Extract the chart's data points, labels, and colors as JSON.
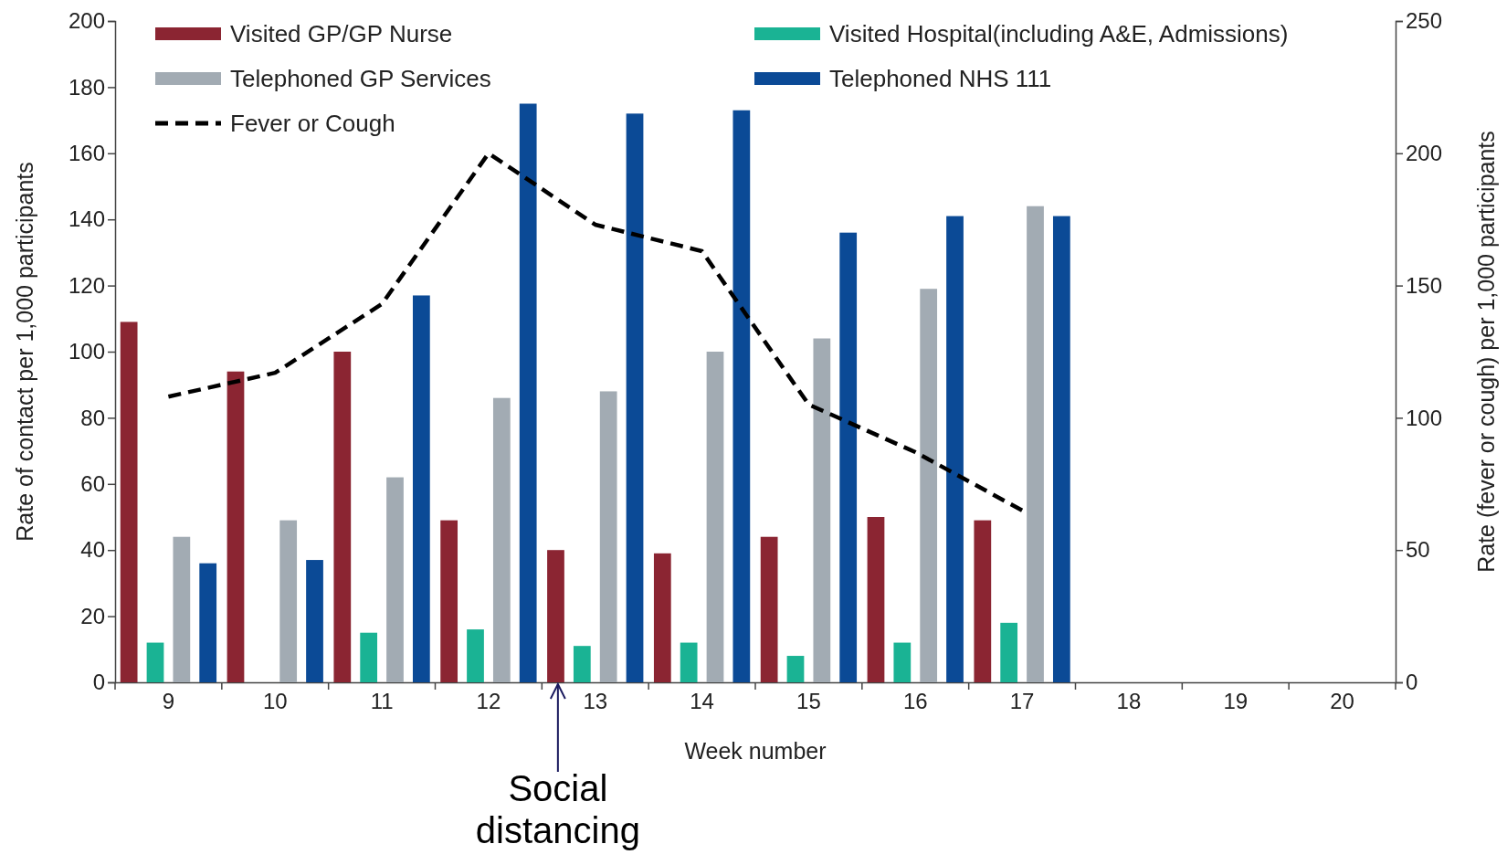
{
  "chart_data": {
    "type": "bar",
    "xlabel": "Week number",
    "ylabel": "Rate of contact per 1,000 participants",
    "y2label": "Rate (fever or cough) per 1,000 participants",
    "categories": [
      "9",
      "10",
      "11",
      "12",
      "13",
      "14",
      "15",
      "16",
      "17",
      "18",
      "19",
      "20"
    ],
    "series": [
      {
        "name": "Visited GP/GP Nurse",
        "color": "#8b2532",
        "values": [
          109,
          94,
          100,
          49,
          40,
          39,
          44,
          50,
          49,
          null,
          null,
          null
        ]
      },
      {
        "name": "Visited Hospital(including A&E, Admissions)",
        "color": "#1ab394",
        "values": [
          12,
          null,
          15,
          16,
          11,
          12,
          8,
          12,
          18,
          null,
          null,
          null
        ]
      },
      {
        "name": "Telephoned GP Services",
        "color": "#a2abb3",
        "values": [
          44,
          49,
          62,
          86,
          88,
          100,
          104,
          119,
          144,
          null,
          null,
          null
        ]
      },
      {
        "name": "Telephoned NHS 111",
        "color": "#0b4a96",
        "values": [
          36,
          37,
          117,
          175,
          172,
          173,
          136,
          141,
          141,
          null,
          null,
          null
        ]
      },
      {
        "name": "Fever or Cough",
        "type": "line",
        "axis": "y2",
        "color": "#000000",
        "line_style": "dashed",
        "marker": "none",
        "values": [
          108,
          117,
          143,
          200,
          173,
          163,
          105,
          87,
          65,
          null,
          null,
          null
        ]
      }
    ],
    "ylim": [
      0,
      200
    ],
    "yticks": [
      0,
      20,
      40,
      60,
      80,
      100,
      120,
      140,
      160,
      180,
      200
    ],
    "y2lim": [
      0,
      250
    ],
    "y2ticks": [
      0,
      50,
      100,
      150,
      200,
      250
    ],
    "grid": false,
    "legend": "top",
    "annotations": [
      "Social distancing"
    ]
  }
}
